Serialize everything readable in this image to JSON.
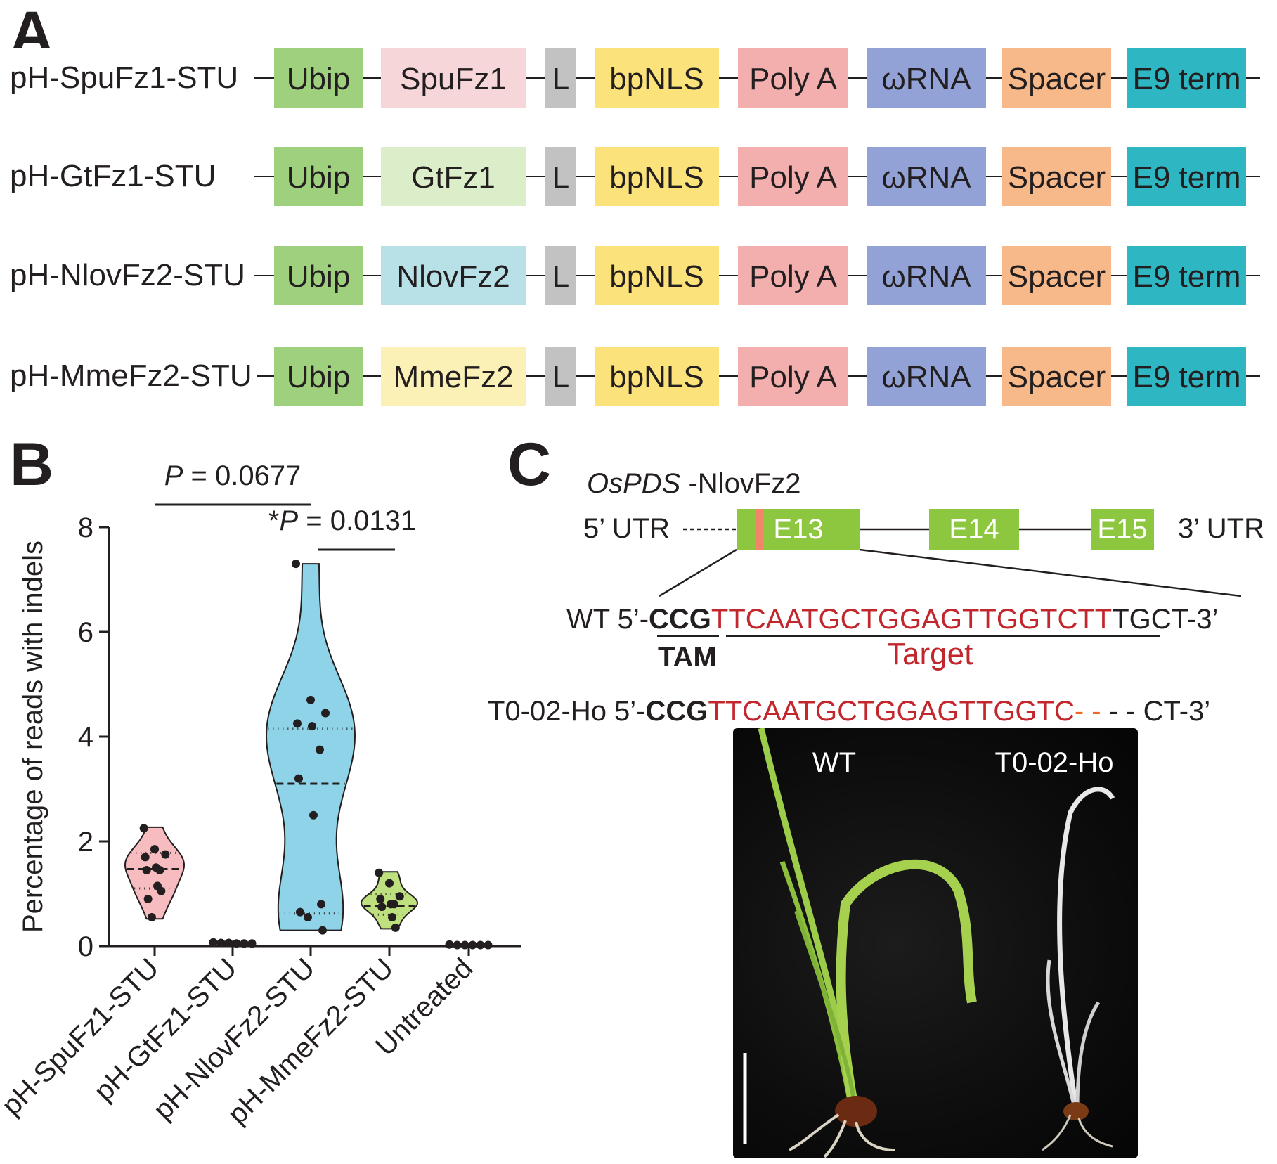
{
  "panels": {
    "a": "A",
    "b": "B",
    "c": "C"
  },
  "panel_a": {
    "colors": {
      "Ubip": "#9fd07e",
      "SpuFz1": "#f7d6da",
      "GtFz1": "#dceec9",
      "NlovFz2": "#b7e1e7",
      "MmeFz2": "#fbf1b7",
      "L": "#c2c2c2",
      "bpNLS": "#fbe27a",
      "Poly A": "#f3aeae",
      "ωRNA": "#93a2d6",
      "Spacer": "#f8b98a",
      "E9 term": "#2eb6c2"
    },
    "constructs": [
      {
        "name": "pH-SpuFz1-STU",
        "parts": [
          "Ubip",
          "SpuFz1",
          "L",
          "bpNLS",
          "Poly A",
          "ωRNA",
          "Spacer",
          "E9 term"
        ]
      },
      {
        "name": "pH-GtFz1-STU",
        "parts": [
          "Ubip",
          "GtFz1",
          "L",
          "bpNLS",
          "Poly A",
          "ωRNA",
          "Spacer",
          "E9 term"
        ]
      },
      {
        "name": "pH-NlovFz2-STU",
        "parts": [
          "Ubip",
          "NlovFz2",
          "L",
          "bpNLS",
          "Poly A",
          "ωRNA",
          "Spacer",
          "E9 term"
        ]
      },
      {
        "name": "pH-MmeFz2-STU",
        "parts": [
          "Ubip",
          "MmeFz2",
          "L",
          "bpNLS",
          "Poly A",
          "ωRNA",
          "Spacer",
          "E9 term"
        ]
      }
    ]
  },
  "chart_data": {
    "type": "violin",
    "ylabel": "Percentage of reads with indels",
    "ylim": [
      0,
      8
    ],
    "yticks": [
      0,
      2,
      4,
      6,
      8
    ],
    "categories": [
      "pH-SpuFz1-STU",
      "pH-GtFz1-STU",
      "pH-NlovFz2-STU",
      "pH-MmeFz2-STU",
      "Untreated"
    ],
    "fill_colors": [
      "#f7bcc0",
      "#bfbfbf",
      "#8fd3e8",
      "#bfe07f",
      "#bfbfbf"
    ],
    "series": [
      {
        "category": "pH-SpuFz1-STU",
        "points": [
          2.25,
          1.85,
          1.75,
          1.7,
          1.5,
          1.45,
          1.45,
          1.15,
          1.05,
          0.9,
          0.55
        ],
        "median": 1.47,
        "q1": 1.1,
        "q3": 1.78,
        "range": [
          0.52,
          2.27
        ]
      },
      {
        "category": "pH-GtFz1-STU",
        "points": [
          0.07,
          0.06,
          0.06,
          0.05,
          0.05,
          0.05
        ],
        "median": 0.06,
        "q1": 0.05,
        "q3": 0.06,
        "range": [
          0.05,
          0.07
        ]
      },
      {
        "category": "pH-NlovFz2-STU",
        "points": [
          7.3,
          4.7,
          4.45,
          4.25,
          4.2,
          3.75,
          3.2,
          2.5,
          0.8,
          0.65,
          0.55,
          0.3
        ],
        "median": 3.1,
        "q1": 0.62,
        "q3": 4.15,
        "range": [
          0.3,
          7.3
        ]
      },
      {
        "category": "pH-MmeFz2-STU",
        "points": [
          1.4,
          1.2,
          0.95,
          0.9,
          0.8,
          0.8,
          0.75,
          0.55,
          0.35
        ],
        "median": 0.77,
        "q1": 0.6,
        "q3": 1.0,
        "range": [
          0.33,
          1.42
        ]
      },
      {
        "category": "Untreated",
        "points": [
          0.03,
          0.02,
          0.02,
          0.02,
          0.02,
          0.02
        ],
        "median": 0.02,
        "q1": 0.02,
        "q3": 0.02,
        "range": [
          0.02,
          0.03
        ]
      }
    ],
    "annotations": [
      {
        "text_prefix": "",
        "text_p": "P",
        "text_rest": " = 0.0677",
        "between": [
          "pH-SpuFz1-STU",
          "pH-NlovFz2-STU"
        ]
      },
      {
        "text_prefix": "*",
        "text_p": "P",
        "text_rest": " = 0.0131",
        "between": [
          "pH-NlovFz2-STU",
          "pH-MmeFz2-STU"
        ]
      }
    ]
  },
  "panel_c": {
    "gene_italic": "OsPDS",
    "gene_suffix": " -NlovFz2",
    "utr5": "5’ UTR",
    "utr3": "3’ UTR",
    "exons": [
      "E13",
      "E14",
      "E15"
    ],
    "wt": {
      "label": "WT 5’-",
      "tam": "CCG",
      "target": "TTCAATGCTGGAGTTGGTCTT",
      "tail": "TGCT-3’"
    },
    "tam_label": "TAM",
    "target_label": "Target",
    "mut": {
      "label": "T0-02-Ho 5’-",
      "tam": "CCG",
      "target": "TTCAATGCTGGAGTTGGTC",
      "del_orange": "- -",
      "del_black": " - - ",
      "tail": "CT-3’"
    },
    "photo_labels": [
      "WT",
      "T0-02-Ho"
    ]
  }
}
